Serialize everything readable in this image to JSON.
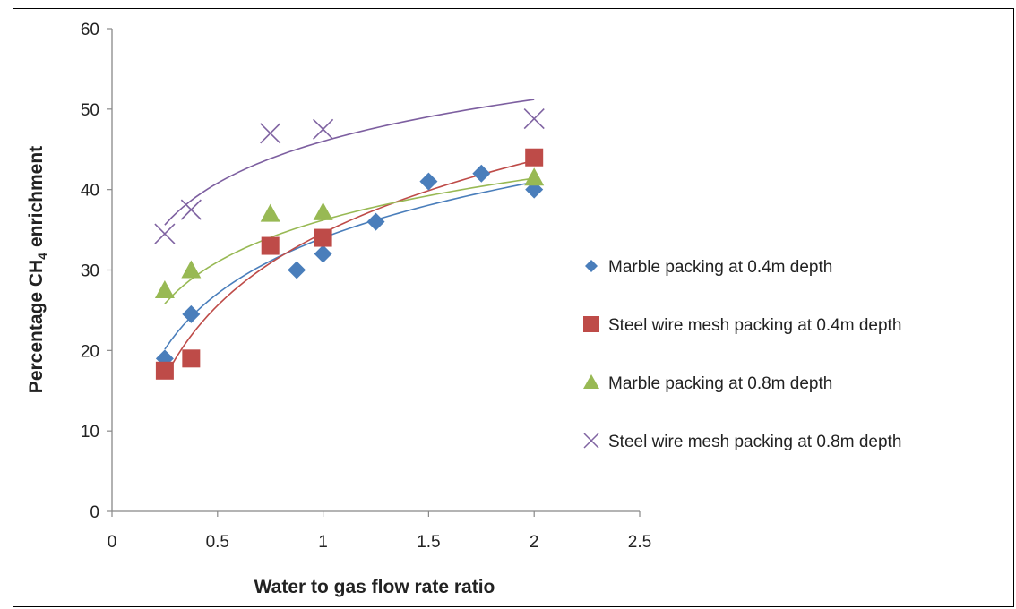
{
  "chart_data": {
    "type": "scatter",
    "xlabel": "Water to gas flow rate ratio",
    "ylabel": "Percentage CH",
    "ylabel_subscript": "4",
    "ylabel_suffix": "enrichment",
    "xlim": [
      0,
      2.5
    ],
    "ylim": [
      0,
      60
    ],
    "x_ticks": [
      0,
      0.5,
      1,
      1.5,
      2,
      2.5
    ],
    "x_tick_labels": [
      "0",
      "0.5",
      "1",
      "1.5",
      "2",
      "2.5"
    ],
    "y_ticks": [
      0,
      10,
      20,
      30,
      40,
      50,
      60
    ],
    "y_tick_labels": [
      "0",
      "10",
      "20",
      "30",
      "40",
      "50",
      "60"
    ],
    "grid": false,
    "legend_position": "right",
    "trendline": "logarithmic",
    "series": [
      {
        "name": "Marble packing at 0.4m depth",
        "marker": "diamond",
        "color": "#4a7ebb",
        "line_color": "#4a7ebb",
        "points": [
          [
            0.25,
            19
          ],
          [
            0.375,
            24.5
          ],
          [
            0.875,
            30
          ],
          [
            1.0,
            32
          ],
          [
            1.25,
            36
          ],
          [
            1.5,
            41
          ],
          [
            1.75,
            42
          ],
          [
            2.0,
            40
          ]
        ],
        "trend": {
          "a": 34.0,
          "b": 10.0,
          "x_from": 0.25,
          "x_to": 2.0
        }
      },
      {
        "name": "Steel wire mesh packing at 0.4m depth",
        "marker": "square",
        "color": "#be4b48",
        "line_color": "#be4b48",
        "points": [
          [
            0.25,
            17.5
          ],
          [
            0.375,
            19
          ],
          [
            0.75,
            33
          ],
          [
            1.0,
            34
          ],
          [
            2.0,
            44
          ]
        ],
        "trend": {
          "a": 34.6,
          "b": 13.0,
          "x_from": 0.25,
          "x_to": 2.0
        }
      },
      {
        "name": "Marble packing at 0.8m depth",
        "marker": "triangle",
        "color": "#98b954",
        "line_color": "#98b954",
        "points": [
          [
            0.25,
            27.5
          ],
          [
            0.375,
            30
          ],
          [
            0.75,
            37
          ],
          [
            1.0,
            37.2
          ],
          [
            2.0,
            41.5
          ]
        ],
        "trend": {
          "a": 36.2,
          "b": 7.5,
          "x_from": 0.25,
          "x_to": 2.0
        }
      },
      {
        "name": "Steel wire mesh packing at 0.8m depth",
        "marker": "x",
        "color": "#8064a2",
        "line_color": "#7d5fa0",
        "points": [
          [
            0.25,
            34.5
          ],
          [
            0.375,
            37.5
          ],
          [
            0.75,
            47
          ],
          [
            1.0,
            47.5
          ],
          [
            2.0,
            48.8
          ]
        ],
        "trend": {
          "a": 46.0,
          "b": 7.5,
          "x_from": 0.25,
          "x_to": 2.0
        }
      }
    ]
  }
}
